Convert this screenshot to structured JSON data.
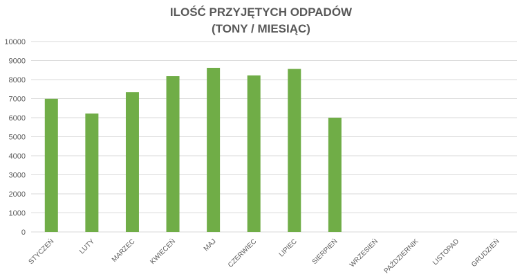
{
  "chart_data": {
    "type": "bar",
    "title_line1": "ILOŚĆ PRZYJĘTYCH ODPADÓW",
    "title_line2": "(TONY / MIESIĄC)",
    "categories": [
      "STYCZEŃ",
      "LUTY",
      "MARZEC",
      "KWIECEŃ",
      "MAJ",
      "CZERWIEC",
      "LIPIEC",
      "SIERPIEŃ",
      "WRZESIEŃ",
      "PAŹDZIERNIK",
      "LISTOPAD",
      "GRUDZIEŃ"
    ],
    "values": [
      6990,
      6220,
      7340,
      8180,
      8620,
      8220,
      8560,
      6000,
      null,
      null,
      null,
      null
    ],
    "ylim": [
      0,
      10000
    ],
    "yticks": [
      0,
      1000,
      2000,
      3000,
      4000,
      5000,
      6000,
      7000,
      8000,
      9000,
      10000
    ],
    "grid": true,
    "bar_color": "#70AD47",
    "grid_color": "#D9D9D9",
    "text_color": "#595959"
  }
}
